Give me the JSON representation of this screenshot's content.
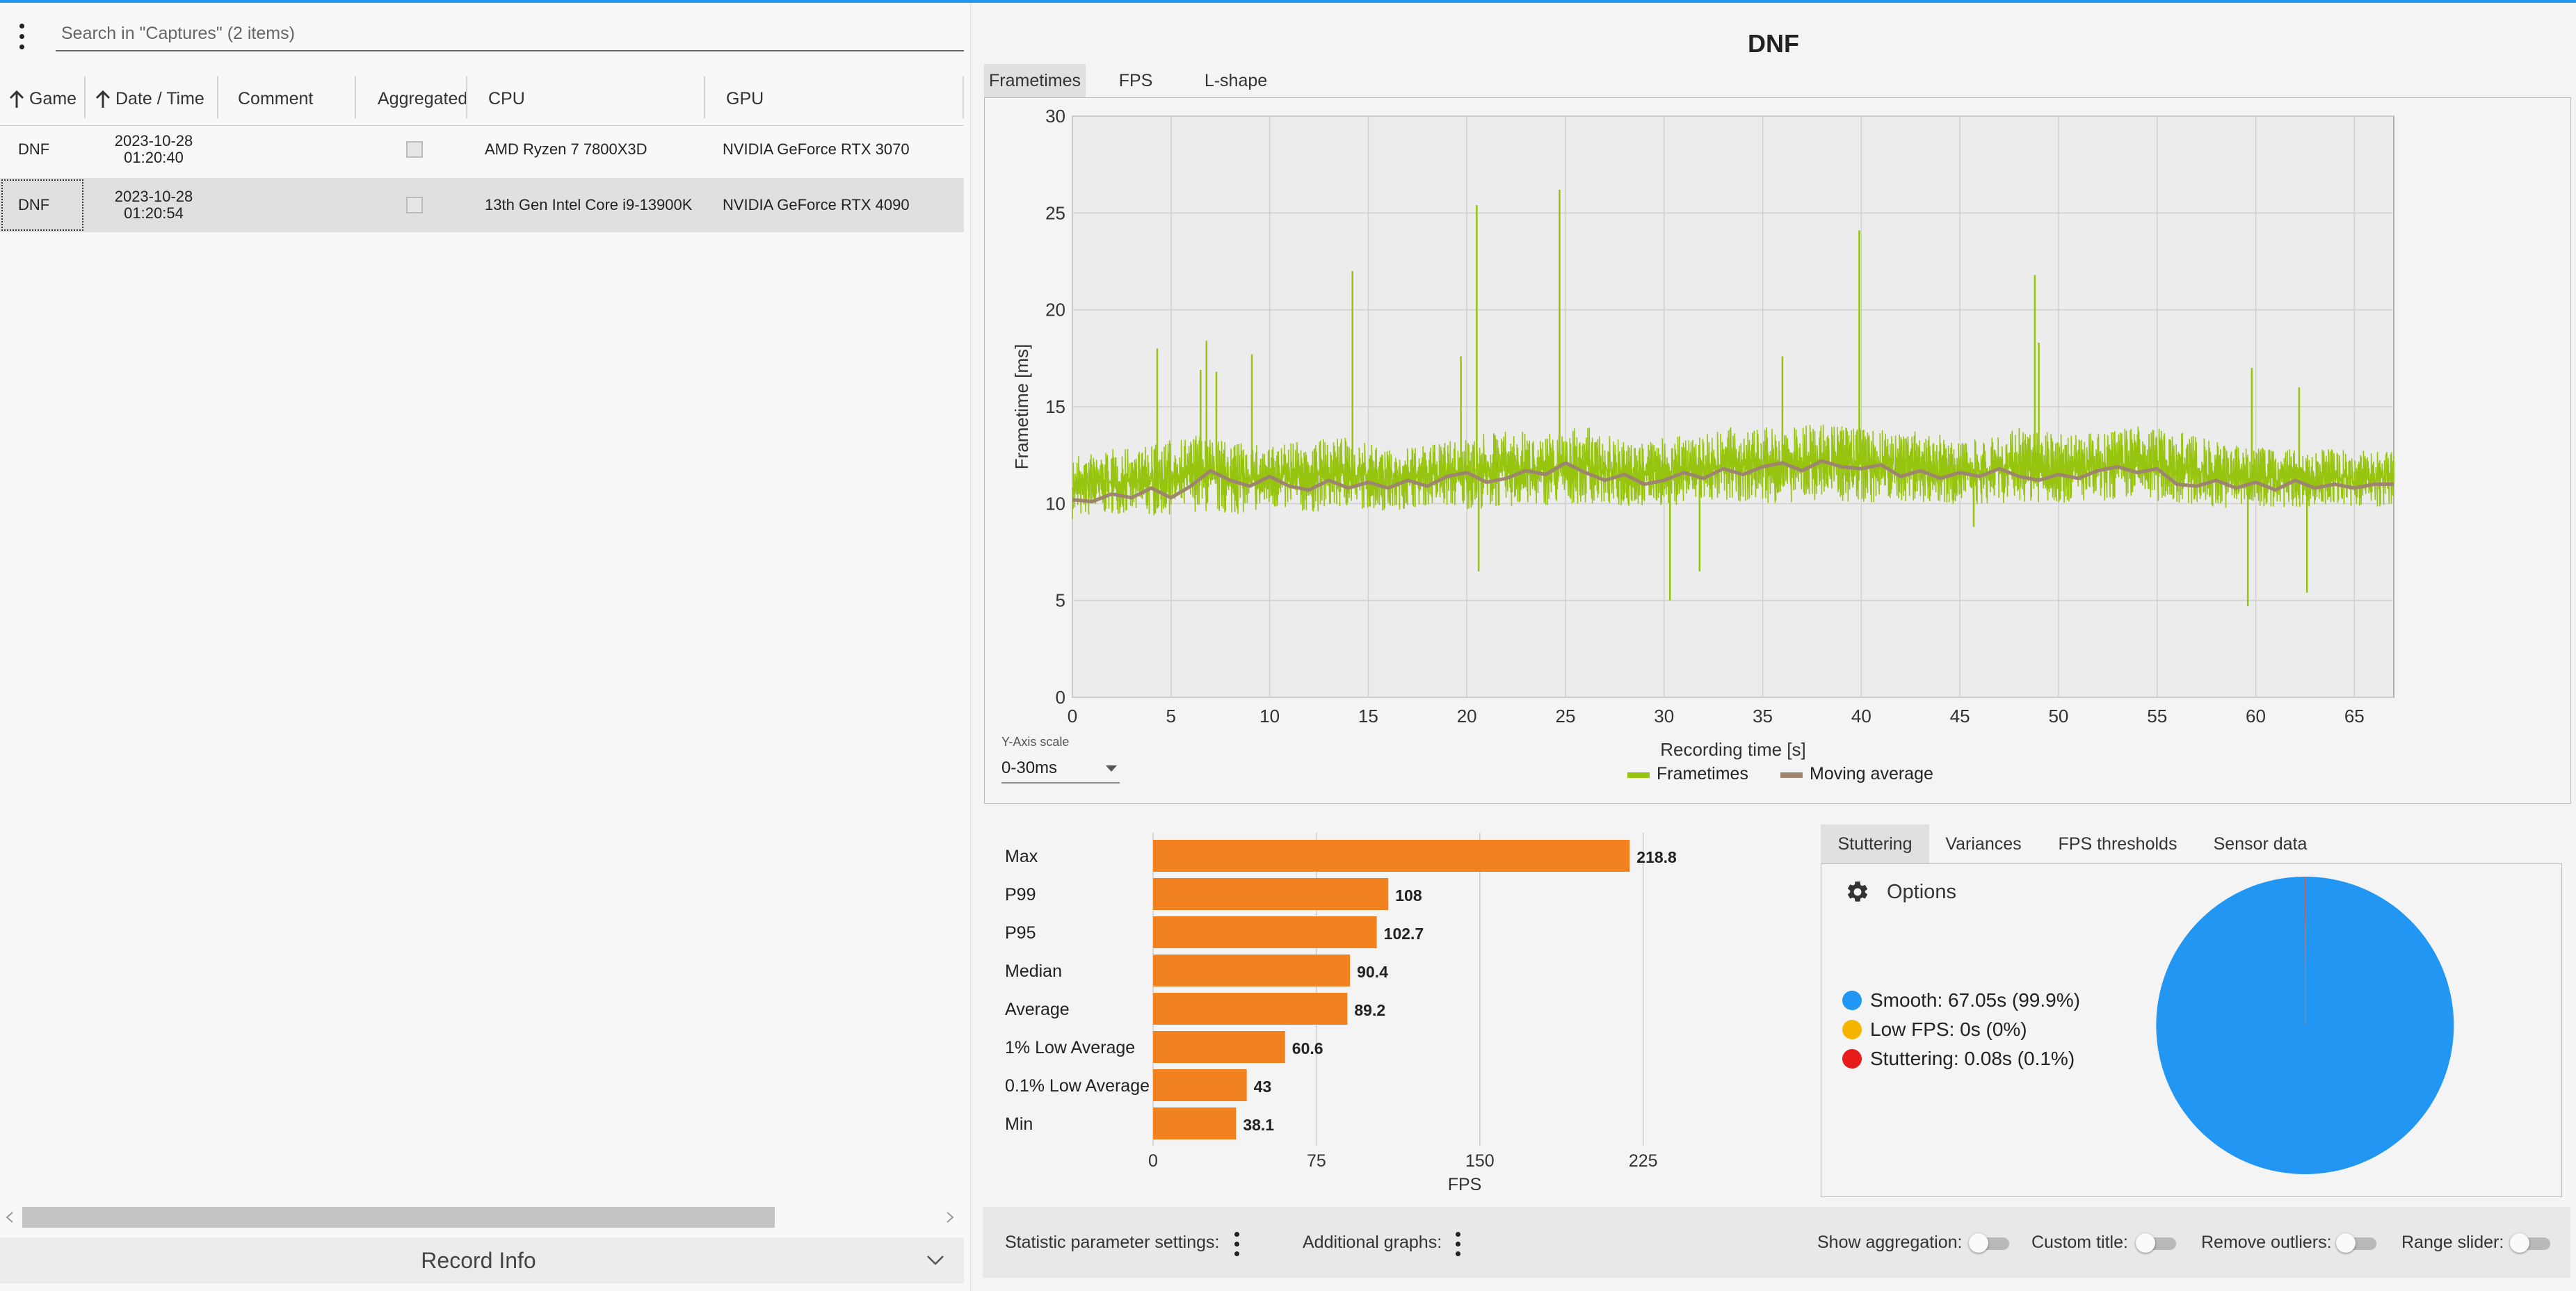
{
  "captures": {
    "search_placeholder": "Search in \"Captures\" (2 items)",
    "columns": {
      "game": "Game",
      "datetime": "Date / Time",
      "comment": "Comment",
      "aggregated": "Aggregated",
      "cpu": "CPU",
      "gpu": "GPU"
    },
    "rows": [
      {
        "game": "DNF",
        "date": "2023-10-28",
        "time": "01:20:40",
        "comment": "",
        "aggregated": false,
        "cpu": "AMD Ryzen 7 7800X3D",
        "gpu": "NVIDIA GeForce RTX 3070"
      },
      {
        "game": "DNF",
        "date": "2023-10-28",
        "time": "01:20:54",
        "comment": "",
        "aggregated": false,
        "cpu": "13th Gen Intel Core i9-13900K",
        "gpu": "NVIDIA GeForce RTX 4090"
      }
    ],
    "selected_row": 1,
    "record_info_label": "Record Info"
  },
  "graph": {
    "title": "DNF",
    "tabs": [
      "Frametimes",
      "FPS",
      "L-shape"
    ],
    "active_tab": "Frametimes",
    "y_axis_scale_caption": "Y-Axis scale",
    "y_axis_scale_value": "0-30ms"
  },
  "stutter": {
    "tabs": [
      "Stuttering",
      "Variances",
      "FPS thresholds",
      "Sensor data"
    ],
    "active_tab": "Stuttering",
    "options_label": "Options",
    "legend": [
      {
        "label": "Smooth:  67.05s (99.9%)",
        "color": "#2196f3"
      },
      {
        "label": "Low FPS:  0s (0%)",
        "color": "#f5b400"
      },
      {
        "label": "Stuttering:  0.08s (0.1%)",
        "color": "#e81b1b"
      }
    ]
  },
  "footer": {
    "statistic_settings_label": "Statistic parameter settings:",
    "additional_graphs_label": "Additional graphs:",
    "show_aggregation_label": "Show aggregation:",
    "custom_title_label": "Custom title:",
    "remove_outliers_label": "Remove outliers:",
    "range_slider_label": "Range slider:",
    "toggles": {
      "show_aggregation": false,
      "custom_title": false,
      "remove_outliers": false,
      "range_slider": false
    }
  },
  "chart_data": [
    {
      "type": "line",
      "title": "",
      "xlabel": "Recording time [s]",
      "ylabel": "Frametime [ms]",
      "xlim": [
        0,
        67
      ],
      "ylim": [
        0,
        30
      ],
      "x_ticks": [
        0,
        5,
        10,
        15,
        20,
        25,
        30,
        35,
        40,
        45,
        50,
        55,
        60,
        65
      ],
      "y_ticks": [
        0,
        5,
        10,
        15,
        20,
        25,
        30
      ],
      "grid": true,
      "legend_position": "bottom-center",
      "series": [
        {
          "name": "Frametimes",
          "color": "#97c50f",
          "x": [
            0,
            2,
            4,
            6,
            8,
            10,
            12,
            14,
            16,
            18,
            20,
            22,
            24,
            26,
            28,
            30,
            32,
            34,
            36,
            38,
            40,
            42,
            44,
            46,
            48,
            50,
            52,
            54,
            56,
            58,
            60,
            62,
            64,
            66,
            67
          ],
          "y_min": [
            9.2,
            9.5,
            9.3,
            9.6,
            9.4,
            9.7,
            9.5,
            9.8,
            9.6,
            9.9,
            9.7,
            9.8,
            9.9,
            10.0,
            9.8,
            9.9,
            10.0,
            10.1,
            10.0,
            10.2,
            10.0,
            10.1,
            10.0,
            9.9,
            10.1,
            10.0,
            10.1,
            10.2,
            10.0,
            9.8,
            9.7,
            9.8,
            9.9,
            9.8,
            9.9
          ],
          "y_max": [
            12.5,
            12.8,
            13.0,
            13.6,
            13.2,
            13.0,
            13.3,
            13.4,
            12.8,
            13.0,
            13.5,
            13.8,
            13.6,
            14.0,
            13.2,
            13.4,
            13.8,
            14.0,
            13.9,
            14.2,
            14.0,
            13.8,
            13.6,
            13.4,
            13.9,
            13.7,
            13.6,
            14.0,
            13.8,
            13.2,
            12.9,
            12.8,
            12.8,
            12.7,
            13.0
          ],
          "spikes": [
            {
              "x": 4.3,
              "y": 18.0
            },
            {
              "x": 6.5,
              "y": 16.9
            },
            {
              "x": 6.8,
              "y": 18.4
            },
            {
              "x": 7.3,
              "y": 16.8
            },
            {
              "x": 9.1,
              "y": 17.7
            },
            {
              "x": 14.2,
              "y": 22.0
            },
            {
              "x": 19.7,
              "y": 17.6
            },
            {
              "x": 20.5,
              "y": 25.4
            },
            {
              "x": 20.6,
              "y": 6.5
            },
            {
              "x": 24.7,
              "y": 26.2
            },
            {
              "x": 30.3,
              "y": 5.0
            },
            {
              "x": 31.8,
              "y": 6.5
            },
            {
              "x": 36.0,
              "y": 17.6
            },
            {
              "x": 39.9,
              "y": 24.1
            },
            {
              "x": 48.8,
              "y": 21.8
            },
            {
              "x": 49.0,
              "y": 18.3
            },
            {
              "x": 45.7,
              "y": 8.8
            },
            {
              "x": 59.6,
              "y": 4.7
            },
            {
              "x": 59.8,
              "y": 17.0
            },
            {
              "x": 62.6,
              "y": 5.4
            },
            {
              "x": 62.2,
              "y": 16.0
            }
          ]
        },
        {
          "name": "Moving average",
          "color": "#9e856e",
          "x": [
            0,
            1,
            2,
            3,
            4,
            5,
            6,
            7,
            8,
            9,
            10,
            11,
            12,
            13,
            14,
            15,
            16,
            17,
            18,
            19,
            20,
            21,
            22,
            23,
            24,
            25,
            26,
            27,
            28,
            29,
            30,
            31,
            32,
            33,
            34,
            35,
            36,
            37,
            38,
            39,
            40,
            41,
            42,
            43,
            44,
            45,
            46,
            47,
            48,
            49,
            50,
            51,
            52,
            53,
            54,
            55,
            56,
            57,
            58,
            59,
            60,
            61,
            62,
            63,
            64,
            65,
            66,
            67
          ],
          "y": [
            10.2,
            10.1,
            10.5,
            10.3,
            10.8,
            10.3,
            10.9,
            11.7,
            11.2,
            10.9,
            11.4,
            10.9,
            10.7,
            11.2,
            10.8,
            11.1,
            10.8,
            11.2,
            10.9,
            11.4,
            11.6,
            11.1,
            11.3,
            11.7,
            11.5,
            12.1,
            11.6,
            11.2,
            11.5,
            11.0,
            11.2,
            11.6,
            11.3,
            11.8,
            11.5,
            11.9,
            12.1,
            11.7,
            12.2,
            11.9,
            11.8,
            12.0,
            11.4,
            11.7,
            11.3,
            11.6,
            11.4,
            11.8,
            11.4,
            11.2,
            11.5,
            11.3,
            11.7,
            11.9,
            11.6,
            11.8,
            11.0,
            10.9,
            11.2,
            10.8,
            11.1,
            10.7,
            11.2,
            10.8,
            11.0,
            10.8,
            11.0,
            11.0
          ]
        }
      ]
    },
    {
      "type": "bar",
      "orientation": "horizontal",
      "xlabel": "FPS",
      "xlim": [
        0,
        250
      ],
      "x_ticks": [
        0,
        75,
        150,
        225
      ],
      "grid": true,
      "color": "#f28220",
      "categories": [
        "Max",
        "P99",
        "P95",
        "Median",
        "Average",
        "1% Low Average",
        "0.1% Low Average",
        "Min"
      ],
      "values": [
        218.8,
        108,
        102.7,
        90.4,
        89.2,
        60.6,
        43,
        38.1
      ],
      "value_labels": [
        "218.8",
        "108",
        "102.7",
        "90.4",
        "89.2",
        "60.6",
        "43",
        "38.1"
      ]
    },
    {
      "type": "pie",
      "categories": [
        "Smooth",
        "Low FPS",
        "Stuttering"
      ],
      "values": [
        99.9,
        0,
        0.1
      ],
      "colors": [
        "#2196f3",
        "#f5b400",
        "#e81b1b"
      ]
    }
  ]
}
